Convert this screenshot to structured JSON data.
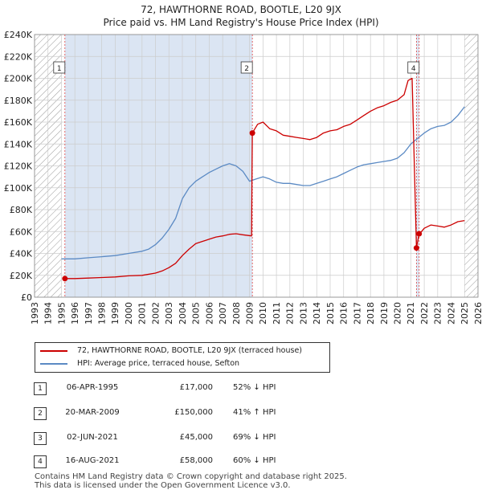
{
  "title_line1": "72, HAWTHORNE ROAD, BOOTLE, L20 9JX",
  "title_line2": "Price paid vs. HM Land Registry's House Price Index (HPI)",
  "colors": {
    "property": "#cc0000",
    "hpi": "#5b8ac4",
    "shade": "#dbe5f3",
    "grid": "#cccccc",
    "hatch": "#999999",
    "marker_line": "#dd4444"
  },
  "legend": {
    "property_label": "72, HAWTHORNE ROAD, BOOTLE, L20 9JX (terraced house)",
    "hpi_label": "HPI: Average price, terraced house, Sefton"
  },
  "transactions": [
    {
      "num": "1",
      "date": "06-APR-1995",
      "price": "£17,000",
      "hpi": "52% ↓ HPI"
    },
    {
      "num": "2",
      "date": "20-MAR-2009",
      "price": "£150,000",
      "hpi": "41% ↑ HPI"
    },
    {
      "num": "3",
      "date": "02-JUN-2021",
      "price": "£45,000",
      "hpi": "69% ↓ HPI"
    },
    {
      "num": "4",
      "date": "16-AUG-2021",
      "price": "£58,000",
      "hpi": "60% ↓ HPI"
    }
  ],
  "footer_line1": "Contains HM Land Registry data © Crown copyright and database right 2025.",
  "footer_line2": "This data is licensed under the Open Government Licence v3.0.",
  "chart_data": {
    "type": "line",
    "title": "Price paid vs. HM Land Registry's House Price Index (HPI)",
    "xlabel": "",
    "ylabel": "",
    "xlim": [
      1993,
      2026
    ],
    "ylim": [
      0,
      240000
    ],
    "grid": true,
    "x_ticks": [
      1993,
      1994,
      1995,
      1996,
      1997,
      1998,
      1999,
      2000,
      2001,
      2002,
      2003,
      2004,
      2005,
      2006,
      2007,
      2008,
      2009,
      2010,
      2011,
      2012,
      2013,
      2014,
      2015,
      2016,
      2017,
      2018,
      2019,
      2020,
      2021,
      2022,
      2023,
      2024,
      2025,
      2026
    ],
    "y_ticks": [
      0,
      20000,
      40000,
      60000,
      80000,
      100000,
      120000,
      140000,
      160000,
      180000,
      200000,
      220000,
      240000
    ],
    "y_tick_labels": [
      "£0",
      "£20K",
      "£40K",
      "£60K",
      "£80K",
      "£100K",
      "£120K",
      "£140K",
      "£160K",
      "£180K",
      "£200K",
      "£220K",
      "£240K"
    ],
    "shaded_ranges": [
      [
        1995.26,
        2009.21
      ],
      [
        2021.42,
        2021.62
      ]
    ],
    "hatched_ranges": [
      [
        1993,
        1995.0
      ],
      [
        2025.0,
        2026
      ]
    ],
    "series": [
      {
        "name": "72, HAWTHORNE ROAD, BOOTLE, L20 9JX (terraced house)",
        "x": [
          1995.26,
          1996,
          1997,
          1998,
          1999,
          2000,
          2001,
          2002,
          2002.5,
          2003,
          2003.5,
          2004,
          2004.5,
          2005,
          2005.5,
          2006,
          2006.5,
          2007,
          2007.5,
          2008,
          2008.5,
          2009.15,
          2009.21,
          2009.6,
          2010,
          2010.5,
          2011,
          2011.5,
          2012,
          2012.5,
          2013,
          2013.5,
          2014,
          2014.5,
          2015,
          2015.5,
          2016,
          2016.5,
          2017,
          2017.5,
          2018,
          2018.5,
          2019,
          2019.5,
          2020,
          2020.5,
          2020.8,
          2021.1,
          2021.42,
          2021.62,
          2021.8,
          2022,
          2022.5,
          2023,
          2023.5,
          2024,
          2024.5,
          2025
        ],
        "values": [
          17000,
          17000,
          17500,
          18000,
          18500,
          19500,
          20000,
          22000,
          24000,
          27000,
          31000,
          38000,
          44000,
          49000,
          51000,
          53000,
          55000,
          56000,
          57500,
          58000,
          57000,
          56000,
          150000,
          158000,
          160000,
          154000,
          152000,
          148000,
          147000,
          146000,
          145000,
          144000,
          146000,
          150000,
          152000,
          153000,
          156000,
          158000,
          162000,
          166000,
          170000,
          173000,
          175000,
          178000,
          180000,
          185000,
          198000,
          200000,
          45000,
          58000,
          60000,
          63000,
          66000,
          65000,
          64000,
          66000,
          69000,
          70000
        ]
      },
      {
        "name": "HPI: Average price, terraced house, Sefton",
        "x": [
          1995,
          1996,
          1997,
          1998,
          1999,
          2000,
          2001,
          2001.5,
          2002,
          2002.5,
          2003,
          2003.5,
          2004,
          2004.5,
          2005,
          2005.5,
          2006,
          2006.5,
          2007,
          2007.5,
          2008,
          2008.5,
          2009,
          2009.5,
          2010,
          2010.5,
          2011,
          2011.5,
          2012,
          2012.5,
          2013,
          2013.5,
          2014,
          2014.5,
          2015,
          2015.5,
          2016,
          2016.5,
          2017,
          2017.5,
          2018,
          2018.5,
          2019,
          2019.5,
          2020,
          2020.5,
          2021,
          2021.5,
          2022,
          2022.5,
          2023,
          2023.5,
          2024,
          2024.5,
          2025
        ],
        "values": [
          35000,
          35000,
          36000,
          37000,
          38000,
          40000,
          42000,
          44000,
          48000,
          54000,
          62000,
          72000,
          90000,
          100000,
          106000,
          110000,
          114000,
          117000,
          120000,
          122000,
          120000,
          115000,
          106000,
          108000,
          110000,
          108000,
          105000,
          104000,
          104000,
          103000,
          102000,
          102000,
          104000,
          106000,
          108000,
          110000,
          113000,
          116000,
          119000,
          121000,
          122000,
          123000,
          124000,
          125000,
          127000,
          132000,
          140000,
          145000,
          150000,
          154000,
          156000,
          157000,
          160000,
          166000,
          174000
        ]
      }
    ],
    "sale_points": [
      {
        "label": "1",
        "x": 1995.26,
        "value": 17000
      },
      {
        "label": "2",
        "x": 2009.21,
        "value": 150000
      },
      {
        "label": "3",
        "x": 2021.42,
        "value": 45000
      },
      {
        "label": "4",
        "x": 2021.62,
        "value": 58000
      }
    ]
  }
}
